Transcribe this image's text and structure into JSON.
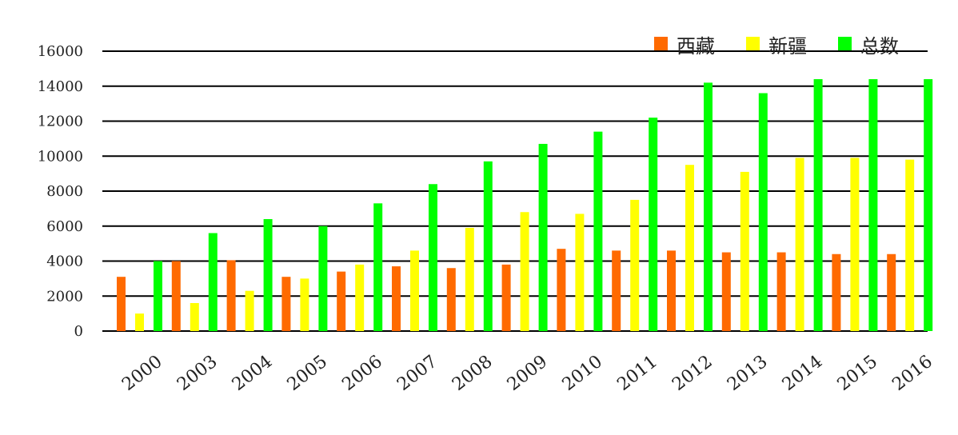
{
  "chart_data": {
    "type": "bar",
    "categories": [
      "2000",
      "2003",
      "2004",
      "2005",
      "2006",
      "2007",
      "2008",
      "2009",
      "2010",
      "2011",
      "2012",
      "2013",
      "2014",
      "2015",
      "2016"
    ],
    "series": [
      {
        "name": "西藏",
        "color": "#ff6a00",
        "values": [
          3100,
          4000,
          4050,
          3100,
          3400,
          3700,
          3600,
          3800,
          4700,
          4600,
          4600,
          4500,
          4500,
          4400,
          4400
        ]
      },
      {
        "name": "新疆",
        "color": "#ffff00",
        "values": [
          1000,
          1600,
          2300,
          3000,
          3800,
          4600,
          5900,
          6800,
          6700,
          7500,
          9500,
          9100,
          9900,
          9900,
          9800
        ]
      },
      {
        "name": "总数",
        "color": "#00ff00",
        "values": [
          4000,
          5600,
          6400,
          6000,
          7300,
          8400,
          9700,
          10700,
          11400,
          12200,
          14200,
          13600,
          14400,
          14400,
          14400
        ]
      }
    ],
    "y_ticks": [
      "0",
      "2000",
      "4000",
      "6000",
      "8000",
      "10000",
      "12000",
      "14000",
      "16000"
    ],
    "ylim": [
      0,
      16000
    ],
    "grid": true,
    "legend_position": "top-right"
  }
}
